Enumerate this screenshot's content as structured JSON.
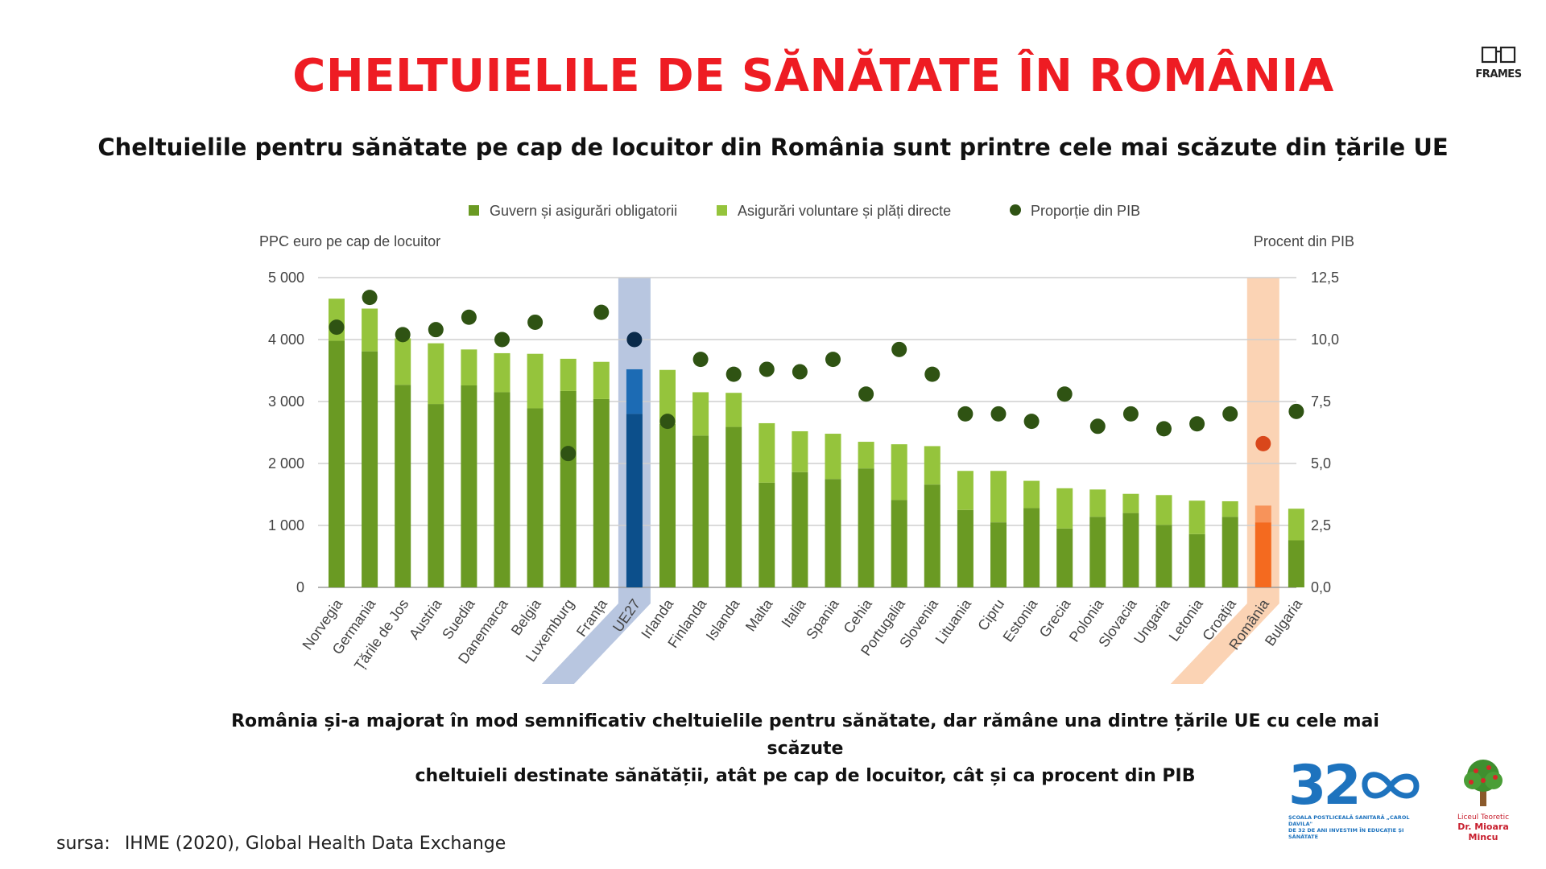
{
  "title": "CHELTUIELILE DE SĂNĂTATE ÎN ROMÂNIA",
  "subtitle": "Cheltuielile pentru sănătate pe cap de locuitor din România sunt printre cele mai scăzute din țările UE",
  "caption_line1": "România și-a majorat în mod semnificativ cheltuielile pentru sănătate, dar rămâne una dintre țările UE cu cele mai scăzute",
  "caption_line2": "cheltuieli destinate sănătății, atât pe cap de locuitor, cât și ca procent din PIB",
  "source_label": "sursa:",
  "source_text": "IHME (2020), Global Health Data Exchange",
  "logo_frames": "FRAMES",
  "logo_school_number": "32",
  "logo_school_text1": "ȘCOALA POSTLICEALĂ SANITARĂ „CAROL DAVILA\"",
  "logo_school_text2": "DE 32 DE ANI INVESTIM ÎN EDUCAȚIE ȘI SĂNĂTATE",
  "logo_lic_line1": "Liceul Teoretic",
  "logo_lic_line2": "Dr. Mioara Mincu",
  "colors": {
    "title": "#ee1c23",
    "gov": "#6a9a23",
    "voluntary": "#95c43c",
    "dot": "#2f5313",
    "eu_gov": "#0c4f8b",
    "eu_vol": "#1c6bb4",
    "eu_dot": "#0a2a4a",
    "eu_band": "#b8c6e0",
    "ro_gov": "#f46a1f",
    "ro_vol": "#f7935a",
    "ro_dot": "#d9471b",
    "ro_band": "#fbd3b4"
  },
  "chart_data": {
    "type": "bar",
    "legend": [
      "Guvern și asigurări obligatorii",
      "Asigurări voluntare și plăți directe",
      "Proporție din PIB"
    ],
    "ylabel_left": "PPC euro pe cap de locuitor",
    "ylabel_right": "Procent din PIB",
    "ylim_left": [
      0,
      5000
    ],
    "ylim_right": [
      0,
      12.5
    ],
    "yticks_left": [
      "0",
      "1 000",
      "2 000",
      "3 000",
      "4 000",
      "5 000"
    ],
    "yticks_right": [
      "0,0",
      "2,5",
      "5,0",
      "7,5",
      "10,0",
      "12,5"
    ],
    "grid": true,
    "categories": [
      "Norvegia",
      "Germania",
      "Țările de Jos",
      "Austria",
      "Suedia",
      "Danemarca",
      "Belgia",
      "Luxemburg",
      "Franța",
      "UE27",
      "Irlanda",
      "Finlanda",
      "Islanda",
      "Malta",
      "Italia",
      "Spania",
      "Cehia",
      "Portugalia",
      "Slovenia",
      "Lituania",
      "Cipru",
      "Estonia",
      "Grecia",
      "Polonia",
      "Slovacia",
      "Ungaria",
      "Letonia",
      "Croația",
      "România",
      "Bulgaria"
    ],
    "series": [
      {
        "name": "Guvern și asigurări obligatorii",
        "values": [
          3980,
          3810,
          3270,
          2960,
          3260,
          3150,
          2890,
          3170,
          3040,
          2800,
          2640,
          2450,
          2590,
          1690,
          1860,
          1750,
          1920,
          1410,
          1660,
          1250,
          1050,
          1280,
          950,
          1140,
          1200,
          1010,
          860,
          1140,
          1050,
          760
        ]
      },
      {
        "name": "Asigurări voluntare și plăți directe",
        "values": [
          680,
          690,
          750,
          980,
          580,
          630,
          880,
          520,
          600,
          720,
          870,
          700,
          550,
          960,
          660,
          730,
          430,
          900,
          620,
          630,
          830,
          440,
          650,
          440,
          310,
          480,
          540,
          250,
          270,
          510
        ]
      },
      {
        "name": "Proporție din PIB",
        "values": [
          10.5,
          11.7,
          10.2,
          10.4,
          10.9,
          10.0,
          10.7,
          5.4,
          11.1,
          10.0,
          6.7,
          9.2,
          8.6,
          8.8,
          8.7,
          9.2,
          7.8,
          9.6,
          8.6,
          7.0,
          7.0,
          6.7,
          7.8,
          6.5,
          7.0,
          6.4,
          6.6,
          7.0,
          5.8,
          7.1
        ]
      }
    ],
    "highlight": [
      "UE27",
      "România"
    ]
  }
}
